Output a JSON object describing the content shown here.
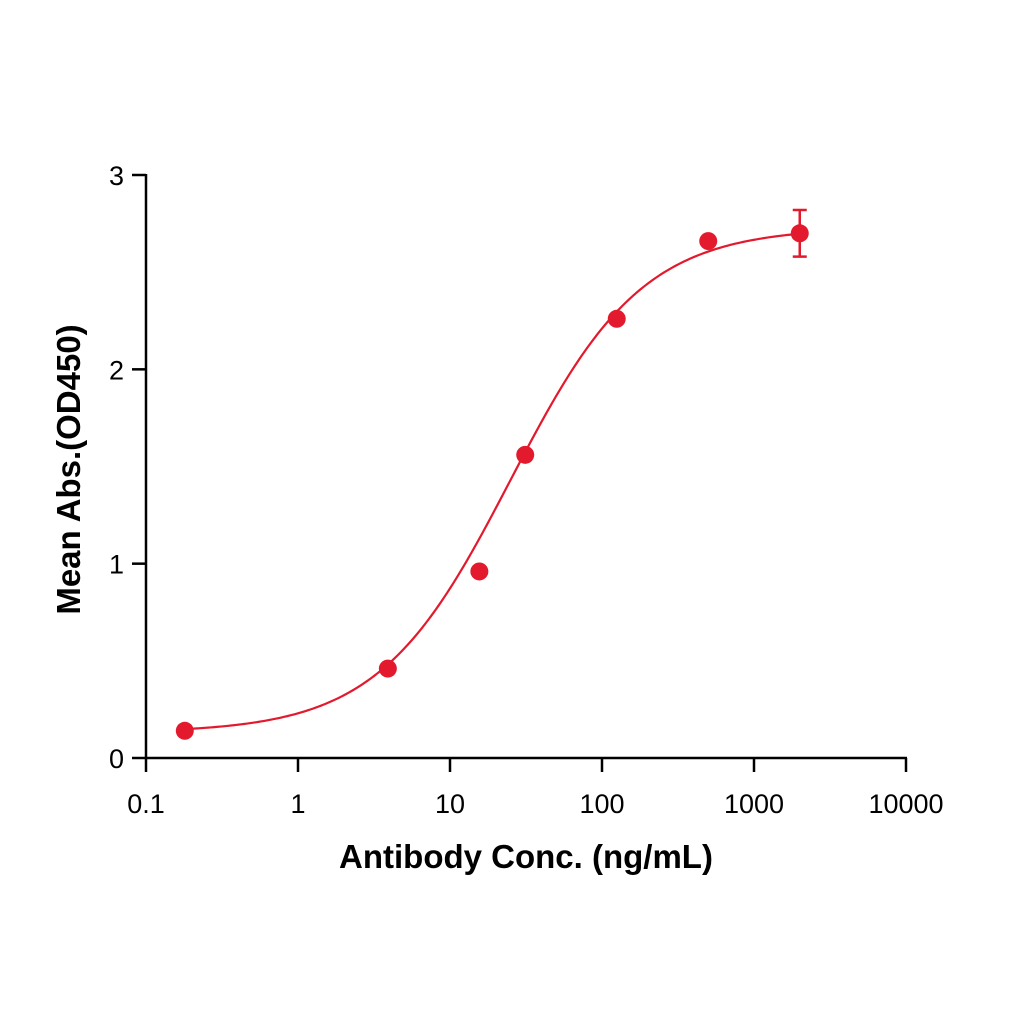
{
  "chart_data": {
    "type": "scatter",
    "title": "",
    "xlabel": "Antibody Conc. (ng/mL)",
    "ylabel": "Mean Abs.(OD450)",
    "x_scale": "log",
    "xlim": [
      0.1,
      10000
    ],
    "ylim": [
      0,
      3
    ],
    "x_ticks": [
      {
        "value": 0.1,
        "label": "0.1"
      },
      {
        "value": 1,
        "label": "1"
      },
      {
        "value": 10,
        "label": "10"
      },
      {
        "value": 100,
        "label": "100"
      },
      {
        "value": 1000,
        "label": "1000"
      },
      {
        "value": 10000,
        "label": "10000"
      }
    ],
    "y_ticks": [
      {
        "value": 0,
        "label": "0"
      },
      {
        "value": 1,
        "label": "1"
      },
      {
        "value": 2,
        "label": "2"
      },
      {
        "value": 3,
        "label": "3"
      }
    ],
    "grid": false,
    "legend": "none",
    "color": "#e31a2d",
    "series": [
      {
        "x": [
          0.18,
          3.9,
          15.6,
          31.25,
          125,
          500,
          2000
        ],
        "y": [
          0.14,
          0.46,
          0.96,
          1.56,
          2.26,
          2.66,
          2.7
        ],
        "error": [
          0,
          0,
          0,
          0,
          0,
          0,
          0.12
        ]
      }
    ],
    "fit_curve": {
      "model": "4PL",
      "bottom": 0.13,
      "top": 2.73,
      "ec50": 25,
      "hill": 1.0
    }
  }
}
